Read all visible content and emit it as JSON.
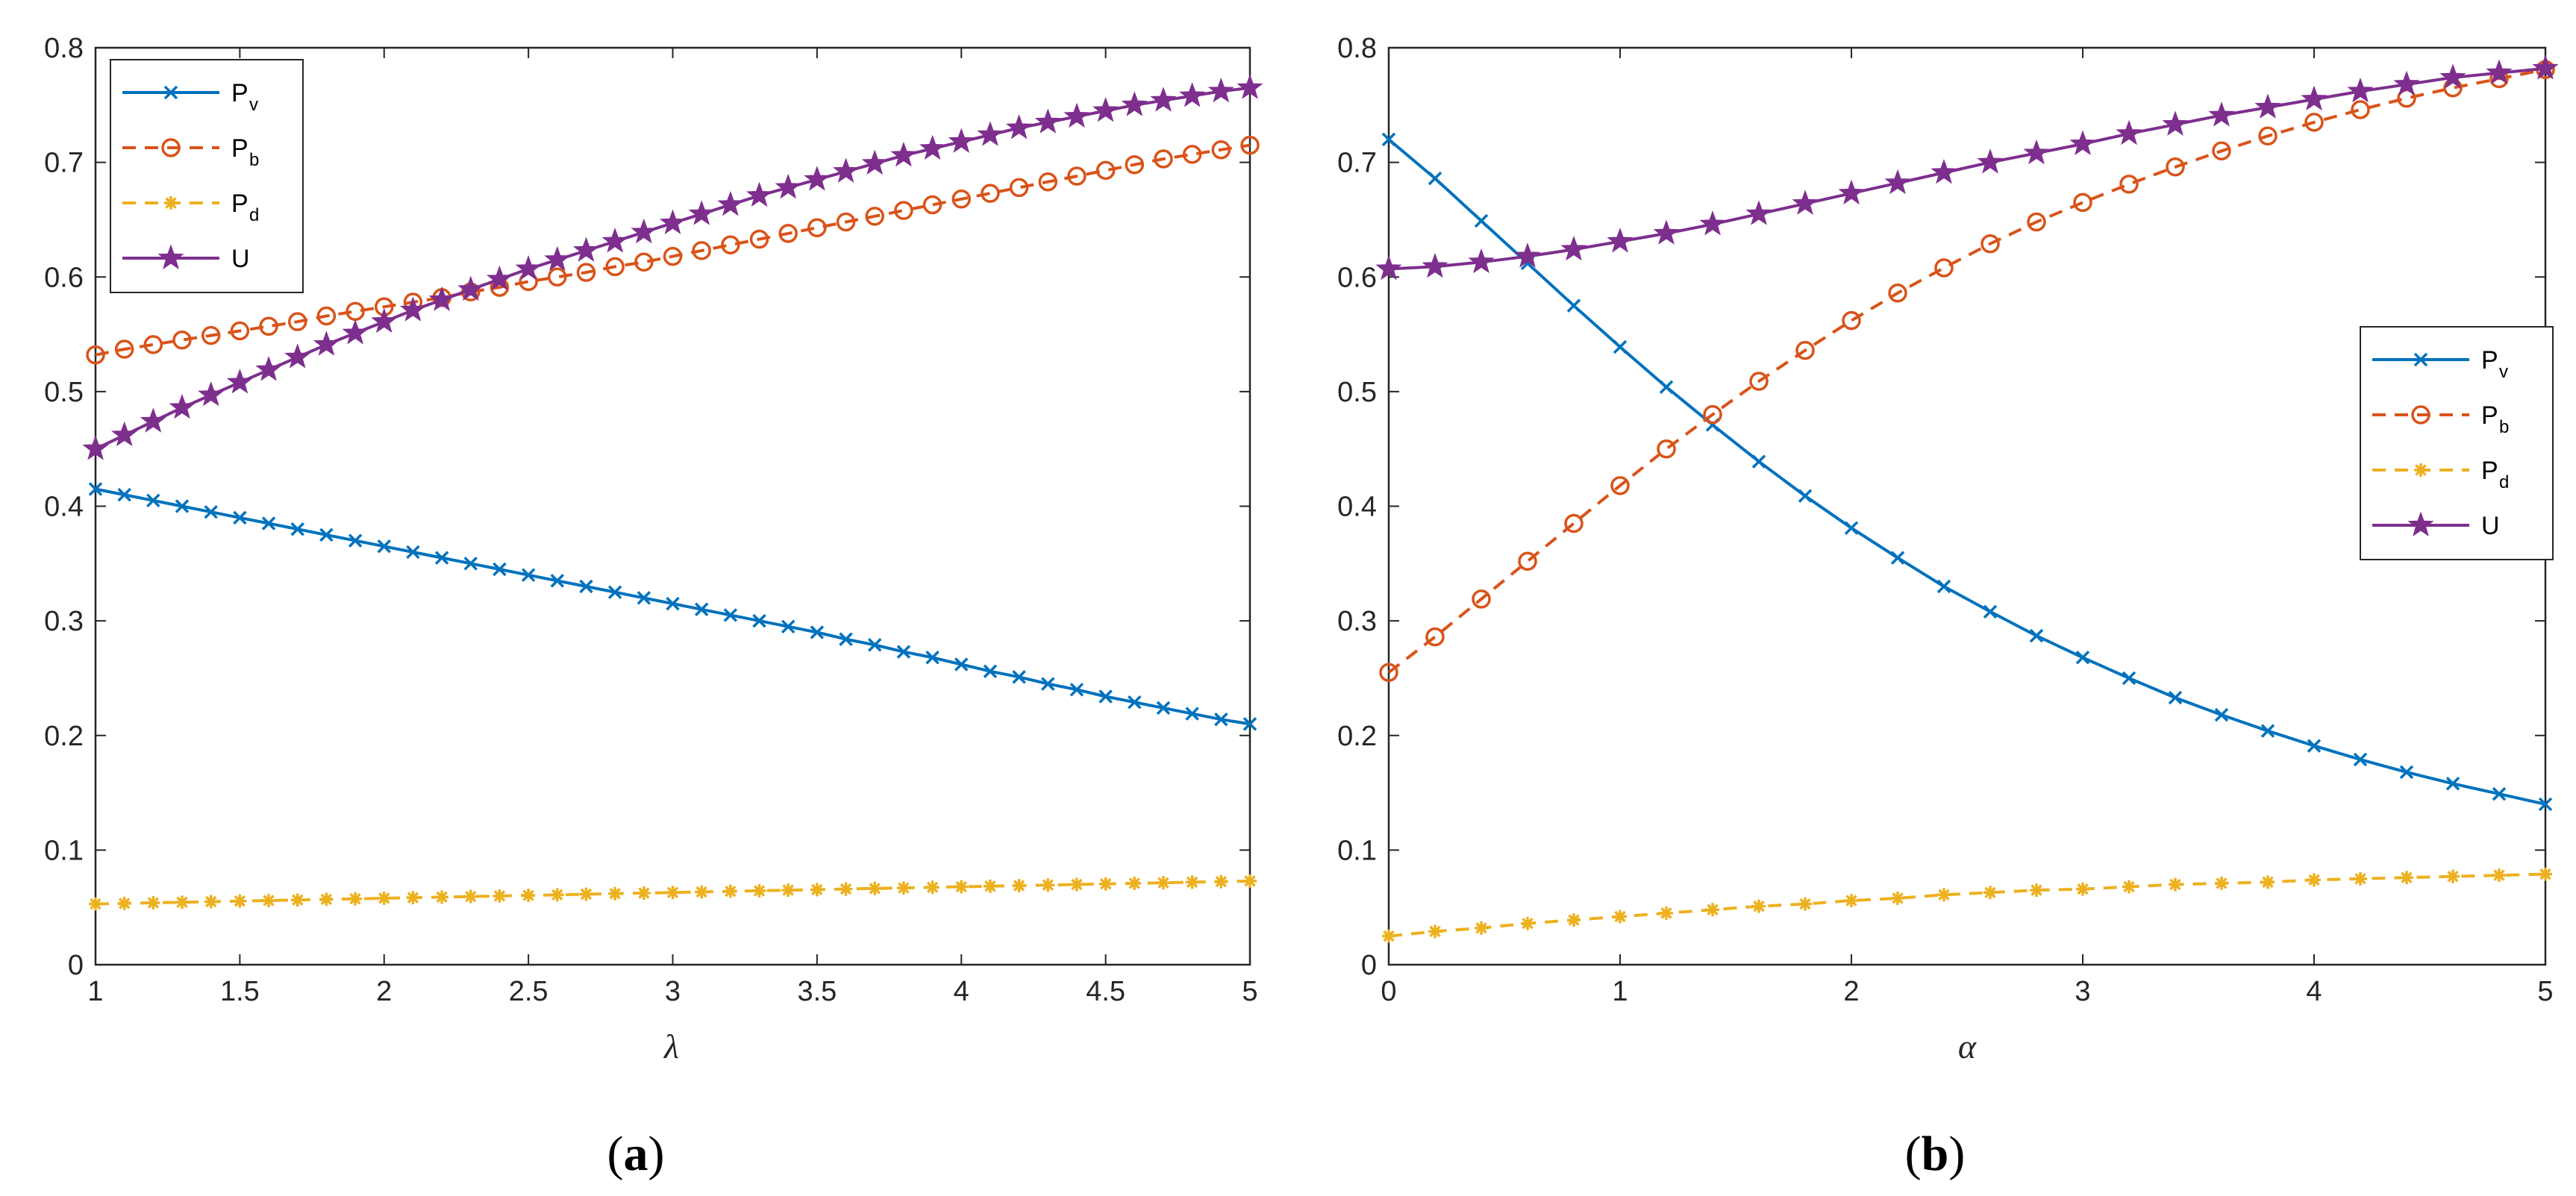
{
  "chart_data": [
    {
      "type": "line",
      "panel": "a",
      "caption": "(a)",
      "caption_open": "(",
      "caption_letter": "a",
      "caption_close": ")",
      "xlabel": "λ",
      "xlim": [
        1,
        5
      ],
      "ylim": [
        0,
        0.8
      ],
      "xticks": [
        "1",
        "1.5",
        "2",
        "2.5",
        "3",
        "3.5",
        "4",
        "4.5",
        "5"
      ],
      "xtick_values": [
        1,
        1.5,
        2,
        2.5,
        3,
        3.5,
        4,
        4.5,
        5
      ],
      "yticks": [
        "0",
        "0.1",
        "0.2",
        "0.3",
        "0.4",
        "0.5",
        "0.6",
        "0.7",
        "0.8"
      ],
      "ytick_values": [
        0,
        0.1,
        0.2,
        0.3,
        0.4,
        0.5,
        0.6,
        0.7,
        0.8
      ],
      "legend_location": "top-left",
      "x": [
        1,
        1.1,
        1.2,
        1.3,
        1.4,
        1.5,
        1.6,
        1.7,
        1.8,
        1.9,
        2,
        2.1,
        2.2,
        2.3,
        2.4,
        2.5,
        2.6,
        2.7,
        2.8,
        2.9,
        3,
        3.1,
        3.2,
        3.3,
        3.4,
        3.5,
        3.6,
        3.7,
        3.8,
        3.9,
        4,
        4.1,
        4.2,
        4.3,
        4.4,
        4.5,
        4.6,
        4.7,
        4.8,
        4.9,
        5
      ],
      "series": [
        {
          "name": "Pv",
          "legend_main": "P",
          "legend_sub": "v",
          "color": "#0072BD",
          "marker": "x",
          "line": "solid",
          "values": [
            0.415,
            0.41,
            0.405,
            0.4,
            0.395,
            0.39,
            0.385,
            0.38,
            0.375,
            0.37,
            0.365,
            0.36,
            0.355,
            0.35,
            0.345,
            0.34,
            0.335,
            0.33,
            0.325,
            0.32,
            0.315,
            0.31,
            0.305,
            0.3,
            0.295,
            0.29,
            0.284,
            0.279,
            0.273,
            0.268,
            0.262,
            0.256,
            0.251,
            0.245,
            0.24,
            0.234,
            0.229,
            0.224,
            0.219,
            0.214,
            0.21
          ]
        },
        {
          "name": "Pb",
          "legend_main": "P",
          "legend_sub": "b",
          "color": "#D95319",
          "marker": "o",
          "line": "dashed",
          "values": [
            0.532,
            0.537,
            0.541,
            0.545,
            0.549,
            0.553,
            0.557,
            0.561,
            0.566,
            0.57,
            0.574,
            0.578,
            0.582,
            0.587,
            0.591,
            0.596,
            0.6,
            0.604,
            0.609,
            0.613,
            0.618,
            0.623,
            0.628,
            0.633,
            0.638,
            0.643,
            0.648,
            0.653,
            0.658,
            0.663,
            0.668,
            0.673,
            0.678,
            0.683,
            0.688,
            0.693,
            0.698,
            0.703,
            0.707,
            0.711,
            0.715
          ]
        },
        {
          "name": "Pd",
          "legend_main": "P",
          "legend_sub": "d",
          "color": "#EDB120",
          "marker": "*",
          "line": "dashed",
          "values": [
            0.053,
            0.0535,
            0.054,
            0.0545,
            0.055,
            0.0555,
            0.056,
            0.0565,
            0.057,
            0.0575,
            0.058,
            0.0585,
            0.059,
            0.0595,
            0.06,
            0.0605,
            0.061,
            0.0615,
            0.062,
            0.0625,
            0.063,
            0.0635,
            0.064,
            0.0645,
            0.065,
            0.0655,
            0.066,
            0.0665,
            0.067,
            0.0675,
            0.068,
            0.0685,
            0.069,
            0.0695,
            0.07,
            0.0705,
            0.071,
            0.0715,
            0.072,
            0.0725,
            0.073
          ]
        },
        {
          "name": "U",
          "legend_main": "U",
          "legend_sub": "",
          "color": "#7E2F8E",
          "marker": "pentagram",
          "line": "solid",
          "values": [
            0.45,
            0.462,
            0.474,
            0.486,
            0.497,
            0.508,
            0.519,
            0.53,
            0.541,
            0.551,
            0.561,
            0.571,
            0.58,
            0.589,
            0.598,
            0.607,
            0.615,
            0.623,
            0.631,
            0.639,
            0.647,
            0.655,
            0.663,
            0.671,
            0.678,
            0.685,
            0.692,
            0.699,
            0.706,
            0.712,
            0.718,
            0.724,
            0.73,
            0.735,
            0.74,
            0.745,
            0.75,
            0.754,
            0.758,
            0.762,
            0.765
          ]
        }
      ]
    },
    {
      "type": "line",
      "panel": "b",
      "caption": "(b)",
      "caption_open": "(",
      "caption_letter": "b",
      "caption_close": ")",
      "xlabel": "α",
      "xlim": [
        0,
        5
      ],
      "ylim": [
        0,
        0.8
      ],
      "xticks": [
        "0",
        "1",
        "2",
        "3",
        "4",
        "5"
      ],
      "xtick_values": [
        0,
        1,
        2,
        3,
        4,
        5
      ],
      "yticks": [
        "0",
        "0.1",
        "0.2",
        "0.3",
        "0.4",
        "0.5",
        "0.6",
        "0.7",
        "0.8"
      ],
      "ytick_values": [
        0,
        0.1,
        0.2,
        0.3,
        0.4,
        0.5,
        0.6,
        0.7,
        0.8
      ],
      "legend_location": "middle-right",
      "x": [
        0,
        0.2,
        0.4,
        0.6,
        0.8,
        1,
        1.2,
        1.4,
        1.6,
        1.8,
        2,
        2.2,
        2.4,
        2.6,
        2.8,
        3,
        3.2,
        3.4,
        3.6,
        3.8,
        4,
        4.2,
        4.4,
        4.6,
        4.8,
        5
      ],
      "series": [
        {
          "name": "Pv",
          "legend_main": "P",
          "legend_sub": "v",
          "color": "#0072BD",
          "marker": "x",
          "line": "solid",
          "values": [
            0.72,
            0.686,
            0.649,
            0.612,
            0.575,
            0.539,
            0.504,
            0.471,
            0.439,
            0.409,
            0.381,
            0.355,
            0.33,
            0.308,
            0.287,
            0.268,
            0.25,
            0.233,
            0.218,
            0.204,
            0.191,
            0.179,
            0.168,
            0.158,
            0.149,
            0.14
          ]
        },
        {
          "name": "Pb",
          "legend_main": "P",
          "legend_sub": "b",
          "color": "#D95319",
          "marker": "o",
          "line": "dashed",
          "values": [
            0.255,
            0.286,
            0.319,
            0.352,
            0.385,
            0.418,
            0.45,
            0.48,
            0.509,
            0.536,
            0.562,
            0.586,
            0.608,
            0.629,
            0.648,
            0.665,
            0.681,
            0.696,
            0.71,
            0.723,
            0.735,
            0.746,
            0.756,
            0.765,
            0.773,
            0.781
          ]
        },
        {
          "name": "Pd",
          "legend_main": "P",
          "legend_sub": "d",
          "color": "#EDB120",
          "marker": "*",
          "line": "dashed",
          "values": [
            0.025,
            0.029,
            0.032,
            0.036,
            0.039,
            0.042,
            0.045,
            0.048,
            0.051,
            0.053,
            0.056,
            0.058,
            0.061,
            0.063,
            0.065,
            0.066,
            0.068,
            0.07,
            0.071,
            0.072,
            0.074,
            0.075,
            0.076,
            0.077,
            0.078,
            0.079
          ]
        },
        {
          "name": "U",
          "legend_main": "U",
          "legend_sub": "",
          "color": "#7E2F8E",
          "marker": "pentagram",
          "line": "solid",
          "values": [
            0.607,
            0.609,
            0.613,
            0.618,
            0.624,
            0.631,
            0.638,
            0.646,
            0.655,
            0.664,
            0.673,
            0.682,
            0.691,
            0.7,
            0.708,
            0.716,
            0.725,
            0.733,
            0.741,
            0.748,
            0.755,
            0.762,
            0.768,
            0.774,
            0.778,
            0.782
          ]
        }
      ]
    }
  ]
}
